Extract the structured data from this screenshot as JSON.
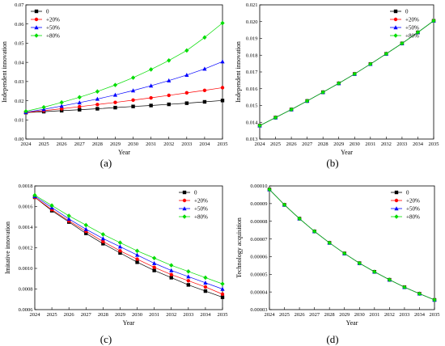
{
  "colors": {
    "s0": "#000000",
    "s20": "#ff0000",
    "s50": "#0000ff",
    "s80": "#00dd00"
  },
  "chart_data": [
    {
      "panel": "(a)",
      "type": "line",
      "xlabel": "Year",
      "ylabel": "Independent innovation",
      "x": [
        2024,
        2025,
        2026,
        2027,
        2028,
        2029,
        2030,
        2031,
        2032,
        2033,
        2034,
        2035
      ],
      "xticks": [
        "2024",
        "2025",
        "2026",
        "2027",
        "2028",
        "2029",
        "2030",
        "2031",
        "2032",
        "2033",
        "2034",
        "2035"
      ],
      "ylim": [
        0.0,
        0.07
      ],
      "yticks": [
        "0.00",
        "0.01",
        "0.02",
        "0.03",
        "0.04",
        "0.05",
        "0.06",
        "0.07"
      ],
      "ytick_values": [
        0.0,
        0.01,
        0.02,
        0.03,
        0.04,
        0.05,
        0.06,
        0.07
      ],
      "legend": "top-left",
      "series": [
        {
          "name": "0",
          "marker": "square",
          "color": "#000000",
          "values": [
            0.0138,
            0.0143,
            0.0148,
            0.0153,
            0.0158,
            0.0164,
            0.017,
            0.0175,
            0.0181,
            0.0187,
            0.0194,
            0.0201
          ]
        },
        {
          "name": "+20%",
          "marker": "circle",
          "color": "#ff0000",
          "values": [
            0.0138,
            0.0148,
            0.0158,
            0.0169,
            0.018,
            0.0191,
            0.0203,
            0.0215,
            0.0228,
            0.0241,
            0.0254,
            0.0268
          ]
        },
        {
          "name": "+50%",
          "marker": "triangle",
          "color": "#0000ff",
          "values": [
            0.014,
            0.0155,
            0.0172,
            0.019,
            0.0209,
            0.023,
            0.0253,
            0.0278,
            0.0305,
            0.0334,
            0.0366,
            0.0404
          ]
        },
        {
          "name": "+80%",
          "marker": "diamond",
          "color": "#00dd00",
          "values": [
            0.0145,
            0.0166,
            0.0191,
            0.0218,
            0.0248,
            0.0282,
            0.032,
            0.0363,
            0.041,
            0.0462,
            0.053,
            0.0605
          ]
        }
      ]
    },
    {
      "panel": "(b)",
      "type": "line",
      "xlabel": "Year",
      "ylabel": "Independent innovation",
      "x": [
        2024,
        2025,
        2026,
        2027,
        2028,
        2029,
        2030,
        2031,
        2032,
        2033,
        2034,
        2035
      ],
      "xticks": [
        "2024",
        "2025",
        "2026",
        "2027",
        "2028",
        "2029",
        "2030",
        "2031",
        "2032",
        "2033",
        "2034",
        "2035"
      ],
      "ylim": [
        0.013,
        0.021
      ],
      "yticks": [
        "0.013",
        "0.014",
        "0.015",
        "0.016",
        "0.017",
        "0.018",
        "0.019",
        "0.020",
        "0.021"
      ],
      "ytick_values": [
        0.013,
        0.014,
        0.015,
        0.016,
        0.017,
        0.018,
        0.019,
        0.02,
        0.021
      ],
      "legend": "top-right",
      "series": [
        {
          "name": "0",
          "marker": "square",
          "color": "#000000",
          "values": [
            0.0138,
            0.01428,
            0.01476,
            0.01527,
            0.01579,
            0.01632,
            0.01688,
            0.01747,
            0.01808,
            0.0187,
            0.01936,
            0.02005
          ]
        },
        {
          "name": "+20%",
          "marker": "circle",
          "color": "#ff0000",
          "values": [
            0.0138,
            0.01428,
            0.01476,
            0.01527,
            0.01579,
            0.01632,
            0.01688,
            0.01747,
            0.01808,
            0.0187,
            0.01936,
            0.02005
          ]
        },
        {
          "name": "+50%",
          "marker": "triangle",
          "color": "#0000ff",
          "values": [
            0.0138,
            0.01428,
            0.01476,
            0.01527,
            0.01579,
            0.01632,
            0.01688,
            0.01747,
            0.01808,
            0.0187,
            0.01936,
            0.02005
          ]
        },
        {
          "name": "+80%",
          "marker": "diamond",
          "color": "#00dd00",
          "values": [
            0.0138,
            0.01428,
            0.01476,
            0.01527,
            0.01579,
            0.01632,
            0.01688,
            0.01747,
            0.01808,
            0.0187,
            0.01936,
            0.02005
          ]
        }
      ]
    },
    {
      "panel": "(c)",
      "type": "line",
      "xlabel": "Year",
      "ylabel": "Imitative innovation",
      "x": [
        2024,
        2025,
        2026,
        2027,
        2028,
        2029,
        2030,
        2031,
        2032,
        2033,
        2034,
        2035
      ],
      "xticks": [
        "2024",
        "2025",
        "2026",
        "2027",
        "2028",
        "2029",
        "2030",
        "2031",
        "2032",
        "2033",
        "2034",
        "2035"
      ],
      "ylim": [
        0.0006,
        0.0018
      ],
      "yticks": [
        "0.0006",
        "0.0008",
        "0.0010",
        "0.0012",
        "0.0014",
        "0.0016",
        "0.0018"
      ],
      "ytick_values": [
        0.0006,
        0.0008,
        0.001,
        0.0012,
        0.0014,
        0.0016,
        0.0018
      ],
      "legend": "top-right",
      "series": [
        {
          "name": "0",
          "marker": "square",
          "color": "#000000",
          "values": [
            0.00169,
            0.00156,
            0.00145,
            0.00134,
            0.00124,
            0.00115,
            0.00106,
            0.00098,
            0.00091,
            0.00084,
            0.00078,
            0.00072
          ]
        },
        {
          "name": "+20%",
          "marker": "circle",
          "color": "#ff0000",
          "values": [
            0.00169,
            0.00157,
            0.00146,
            0.00136,
            0.00126,
            0.00117,
            0.00109,
            0.00101,
            0.00094,
            0.00088,
            0.00082,
            0.00075
          ]
        },
        {
          "name": "+50%",
          "marker": "triangle",
          "color": "#0000ff",
          "values": [
            0.0017,
            0.00159,
            0.00148,
            0.00138,
            0.00129,
            0.00121,
            0.00113,
            0.00105,
            0.00098,
            0.00092,
            0.00086,
            0.0008
          ]
        },
        {
          "name": "+80%",
          "marker": "diamond",
          "color": "#00dd00",
          "values": [
            0.00171,
            0.00161,
            0.00151,
            0.00142,
            0.00133,
            0.00125,
            0.00117,
            0.0011,
            0.00103,
            0.00097,
            0.00091,
            0.00085
          ]
        }
      ]
    },
    {
      "panel": "(d)",
      "type": "line",
      "xlabel": "Year",
      "ylabel": "Technology acquisition",
      "x": [
        2024,
        2025,
        2026,
        2027,
        2028,
        2029,
        2030,
        2031,
        2032,
        2033,
        2034,
        2035
      ],
      "xticks": [
        "2024",
        "2025",
        "2026",
        "2027",
        "2028",
        "2029",
        "2030",
        "2031",
        "2032",
        "2033",
        "2034",
        "2035"
      ],
      "ylim": [
        3e-05,
        0.0001
      ],
      "yticks": [
        "0.00003",
        "0.00004",
        "0.00005",
        "0.00006",
        "0.00007",
        "0.00008",
        "0.00009",
        "0.00010"
      ],
      "ytick_values": [
        3e-05,
        4e-05,
        5e-05,
        6e-05,
        7e-05,
        8e-05,
        9e-05,
        0.0001
      ],
      "legend": "top-right",
      "series": [
        {
          "name": "0",
          "marker": "square",
          "color": "#000000",
          "values": [
            9.8e-05,
            8.93e-05,
            8.15e-05,
            7.43e-05,
            6.78e-05,
            6.18e-05,
            5.63e-05,
            5.14e-05,
            4.69e-05,
            4.27e-05,
            3.9e-05,
            3.55e-05
          ]
        },
        {
          "name": "+20%",
          "marker": "circle",
          "color": "#ff0000",
          "values": [
            9.8e-05,
            8.93e-05,
            8.15e-05,
            7.43e-05,
            6.78e-05,
            6.18e-05,
            5.63e-05,
            5.14e-05,
            4.69e-05,
            4.27e-05,
            3.9e-05,
            3.55e-05
          ]
        },
        {
          "name": "+50%",
          "marker": "triangle",
          "color": "#0000ff",
          "values": [
            9.8e-05,
            8.93e-05,
            8.15e-05,
            7.43e-05,
            6.78e-05,
            6.18e-05,
            5.63e-05,
            5.14e-05,
            4.69e-05,
            4.27e-05,
            3.9e-05,
            3.55e-05
          ]
        },
        {
          "name": "+80%",
          "marker": "diamond",
          "color": "#00dd00",
          "values": [
            9.8e-05,
            8.93e-05,
            8.15e-05,
            7.43e-05,
            6.78e-05,
            6.18e-05,
            5.63e-05,
            5.14e-05,
            4.69e-05,
            4.27e-05,
            3.9e-05,
            3.55e-05
          ]
        }
      ]
    }
  ]
}
